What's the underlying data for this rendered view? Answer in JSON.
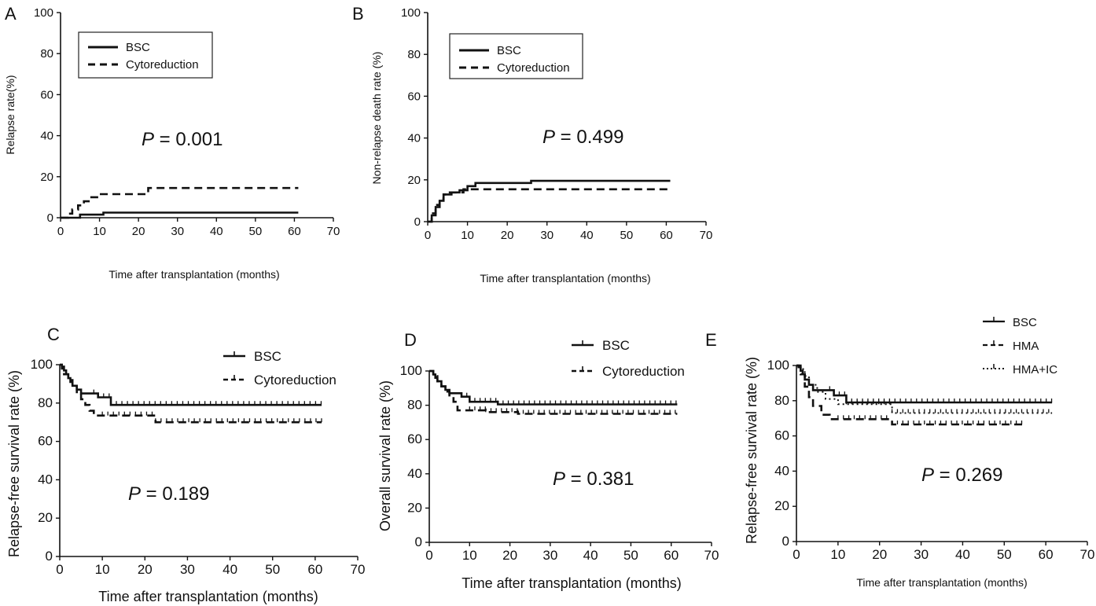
{
  "chart_data": [
    {
      "panel": "A",
      "type": "line",
      "xlabel": "Time after transplantation (months)",
      "ylabel": "Relapse rate(%)",
      "xlim": [
        0,
        70
      ],
      "ylim": [
        0,
        100
      ],
      "xticks": [
        "0",
        "10",
        "20",
        "30",
        "40",
        "50",
        "60",
        "70"
      ],
      "yticks": [
        "0",
        "20",
        "40",
        "60",
        "80",
        "100"
      ],
      "legend": "top-left",
      "annotation": {
        "p_symbol": "P",
        "p_text": " = 0.001"
      },
      "series": [
        {
          "name": "BSC",
          "style": "solid",
          "censor": "none",
          "x": [
            0,
            5,
            5,
            11,
            11,
            61
          ],
          "y": [
            0,
            0,
            1.5,
            1.5,
            2.5,
            2.5
          ]
        },
        {
          "name": "Cytoreduction",
          "style": "dashed",
          "censor": "none",
          "x": [
            0,
            2,
            2,
            3,
            3,
            4.5,
            4.5,
            6,
            6,
            7.5,
            7.5,
            10,
            10,
            22.5,
            22.5,
            61
          ],
          "y": [
            0,
            0,
            2,
            2,
            4,
            4,
            6,
            6,
            8,
            8,
            10,
            10,
            11.5,
            11.5,
            14.5,
            14.5
          ]
        }
      ]
    },
    {
      "panel": "B",
      "type": "line",
      "xlabel": "Time after transplantation (months)",
      "ylabel": "Non-relapse death rate (%)",
      "xlim": [
        0,
        70
      ],
      "ylim": [
        0,
        100
      ],
      "xticks": [
        "0",
        "10",
        "20",
        "30",
        "40",
        "50",
        "60",
        "70"
      ],
      "yticks": [
        "0",
        "20",
        "40",
        "60",
        "80",
        "100"
      ],
      "legend": "top-left",
      "annotation": {
        "p_symbol": "P",
        "p_text": " = 0.499"
      },
      "series": [
        {
          "name": "BSC",
          "style": "solid",
          "censor": "none",
          "x": [
            0,
            1,
            1,
            2,
            2,
            3,
            3,
            4,
            4,
            6,
            6,
            8,
            8,
            10,
            10,
            12,
            12,
            26,
            26,
            61
          ],
          "y": [
            0,
            0,
            3,
            3,
            7,
            7,
            10,
            10,
            13,
            13,
            14,
            14,
            15,
            15,
            17,
            17,
            18.5,
            18.5,
            19.5,
            19.5
          ]
        },
        {
          "name": "Cytoreduction",
          "style": "dashed",
          "censor": "none",
          "x": [
            0,
            1,
            1,
            2,
            2,
            3,
            3,
            4,
            4,
            5,
            5,
            9,
            9,
            61
          ],
          "y": [
            0,
            0,
            4,
            4,
            8,
            8,
            11,
            11,
            13,
            13,
            14,
            14,
            15.5,
            15.5
          ]
        }
      ]
    },
    {
      "panel": "C",
      "type": "line",
      "xlabel": "Time after transplantation (months)",
      "ylabel": "Relapse-free survival rate (%)",
      "xlim": [
        0,
        70
      ],
      "ylim": [
        0,
        100
      ],
      "xticks": [
        "0",
        "10",
        "20",
        "30",
        "40",
        "50",
        "60",
        "70"
      ],
      "yticks": [
        "0",
        "20",
        "40",
        "60",
        "80",
        "100"
      ],
      "legend": "top-right",
      "annotation": {
        "p_symbol": "P",
        "p_text": " = 0.189"
      },
      "series": [
        {
          "name": "BSC",
          "style": "solid",
          "censor": "ticks",
          "censor_from": 8,
          "x": [
            0,
            0.5,
            0.5,
            1,
            1,
            1.5,
            1.5,
            2,
            2,
            2.5,
            2.5,
            3,
            3,
            4,
            4,
            5,
            5,
            9,
            9,
            12,
            12,
            61.5
          ],
          "y": [
            100,
            100,
            99,
            99,
            97,
            97,
            95,
            95,
            93,
            93,
            91,
            91,
            89,
            89,
            87,
            87,
            85,
            85,
            83,
            83,
            79,
            79
          ]
        },
        {
          "name": "Cytoreduction",
          "style": "dashed",
          "censor": "ticks",
          "censor_from": 10,
          "x": [
            0,
            0.5,
            0.5,
            1,
            1,
            2,
            2,
            3,
            3,
            4,
            4,
            5,
            5,
            6,
            6,
            7,
            7,
            8,
            8,
            22.5,
            22.5,
            61.5
          ],
          "y": [
            100,
            100,
            98,
            98,
            95,
            95,
            92,
            92,
            89,
            89,
            85,
            85,
            82,
            82,
            79,
            79,
            76,
            76,
            73.5,
            73.5,
            70,
            70
          ]
        }
      ]
    },
    {
      "panel": "D",
      "type": "line",
      "xlabel": "Time after transplantation (months)",
      "ylabel": "Overall survival rate (%)",
      "xlim": [
        0,
        70
      ],
      "ylim": [
        0,
        100
      ],
      "xticks": [
        "0",
        "10",
        "20",
        "30",
        "40",
        "50",
        "60",
        "70"
      ],
      "yticks": [
        "0",
        "20",
        "40",
        "60",
        "80",
        "100"
      ],
      "legend": "top-right",
      "annotation": {
        "p_symbol": "P",
        "p_text": " = 0.381"
      },
      "series": [
        {
          "name": "BSC",
          "style": "solid",
          "censor": "ticks",
          "censor_from": 8,
          "x": [
            0,
            1,
            1,
            1.5,
            1.5,
            2,
            2,
            3,
            3,
            4,
            4,
            5,
            5,
            8,
            8,
            10,
            10,
            17,
            17,
            61.5
          ],
          "y": [
            100,
            100,
            98,
            98,
            96,
            96,
            94,
            94,
            91,
            91,
            89,
            89,
            87,
            87,
            85,
            85,
            82,
            82,
            80.5,
            80.5
          ]
        },
        {
          "name": "Cytoreduction",
          "style": "dashed",
          "censor": "ticks",
          "censor_from": 10,
          "x": [
            0,
            1,
            1,
            2,
            2,
            3,
            3,
            4,
            4,
            5,
            5,
            6,
            6,
            7,
            7,
            14,
            14,
            22,
            22,
            61.5
          ],
          "y": [
            100,
            100,
            97,
            97,
            94,
            94,
            91,
            91,
            88,
            88,
            85,
            85,
            82,
            82,
            77,
            77,
            76,
            76,
            75,
            75
          ]
        }
      ]
    },
    {
      "panel": "E",
      "type": "line",
      "xlabel": "Time after transplantation (months)",
      "ylabel": "Relapse-free survival rate (%)",
      "xlim": [
        0,
        70
      ],
      "ylim": [
        0,
        100
      ],
      "xticks": [
        "0",
        "10",
        "20",
        "30",
        "40",
        "50",
        "60",
        "70"
      ],
      "yticks": [
        "0",
        "20",
        "40",
        "60",
        "80",
        "100"
      ],
      "legend": "top-right",
      "annotation": {
        "p_symbol": "P",
        "p_text": " = 0.269"
      },
      "series": [
        {
          "name": "BSC",
          "style": "solid",
          "censor": "ticks",
          "censor_from": 8,
          "x": [
            0,
            0.5,
            0.5,
            1,
            1,
            1.5,
            1.5,
            2,
            2,
            3,
            3,
            4,
            4,
            9,
            9,
            12,
            12,
            61.5
          ],
          "y": [
            100,
            100,
            99,
            99,
            97,
            97,
            95,
            95,
            92,
            92,
            89,
            89,
            86,
            86,
            83,
            83,
            79,
            79
          ]
        },
        {
          "name": "HMA",
          "style": "dashed",
          "censor": "ticks",
          "censor_from": 10,
          "x": [
            0,
            1,
            1,
            2,
            2,
            3,
            3,
            4,
            4,
            6,
            6,
            8,
            8,
            23,
            23,
            54.5
          ],
          "y": [
            100,
            100,
            95,
            95,
            88,
            88,
            82,
            82,
            77,
            77,
            72,
            72,
            69.5,
            69.5,
            66.5,
            66.5
          ]
        },
        {
          "name": "HMA+IC",
          "style": "dotted",
          "censor": "ticks",
          "censor_from": 12,
          "x": [
            0,
            1,
            1,
            2,
            2,
            3,
            3,
            5,
            5,
            7,
            7,
            10,
            10,
            23,
            23,
            61.5
          ],
          "y": [
            100,
            100,
            98,
            98,
            94,
            94,
            89,
            89,
            85,
            85,
            81,
            81,
            78,
            78,
            73,
            73
          ]
        }
      ]
    }
  ]
}
